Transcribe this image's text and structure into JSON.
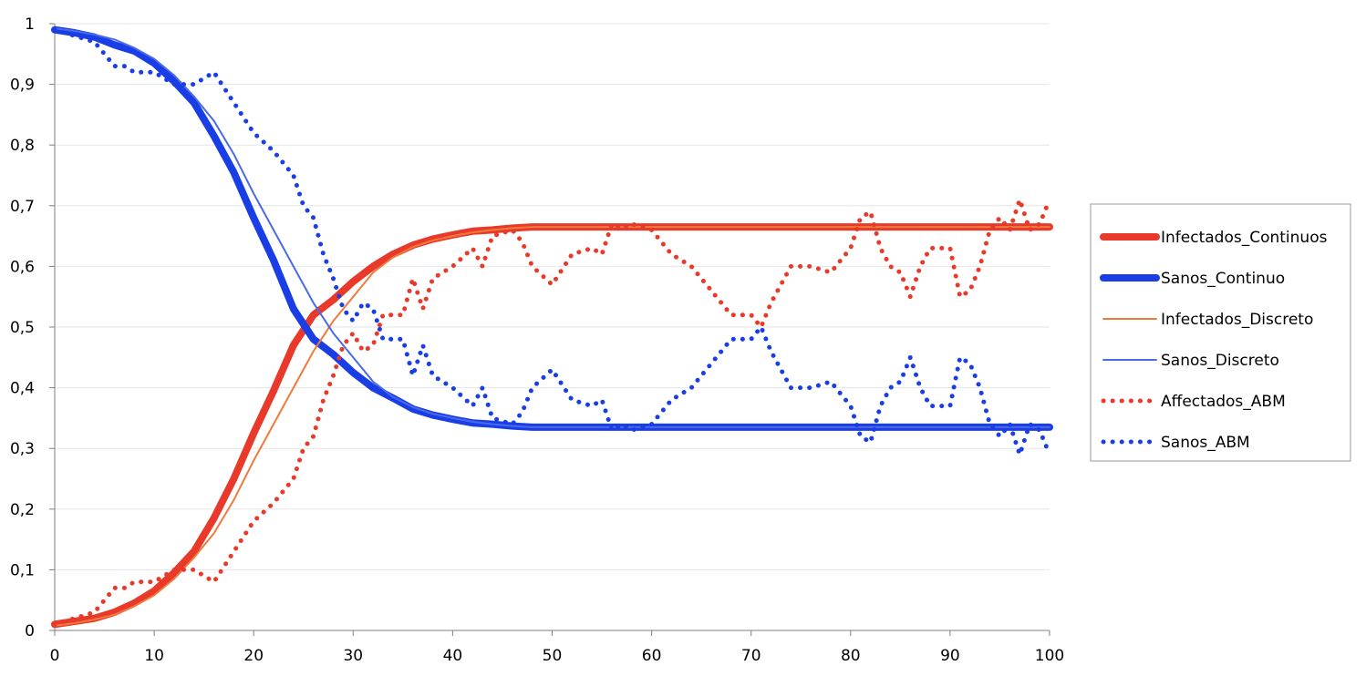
{
  "chart_data": {
    "type": "line",
    "title": "",
    "xlabel": "",
    "ylabel": "",
    "xlim": [
      0,
      100
    ],
    "ylim": [
      0,
      1
    ],
    "x_ticks": [
      "0",
      "10",
      "20",
      "30",
      "40",
      "50",
      "60",
      "70",
      "80",
      "90",
      "100"
    ],
    "y_ticks": [
      "0",
      "0,1",
      "0,2",
      "0,3",
      "0,4",
      "0,5",
      "0,6",
      "0,7",
      "0,8",
      "0,9",
      "1"
    ],
    "grid": "horizontal",
    "legend_position": "right",
    "series": [
      {
        "name": "Infectados_Continuos",
        "color": "#e8392a",
        "style": "thick",
        "points": [
          [
            0,
            0.01
          ],
          [
            2,
            0.015
          ],
          [
            4,
            0.02
          ],
          [
            6,
            0.03
          ],
          [
            8,
            0.045
          ],
          [
            10,
            0.065
          ],
          [
            12,
            0.095
          ],
          [
            14,
            0.13
          ],
          [
            16,
            0.185
          ],
          [
            18,
            0.25
          ],
          [
            20,
            0.325
          ],
          [
            22,
            0.395
          ],
          [
            24,
            0.47
          ],
          [
            26,
            0.52
          ],
          [
            28,
            0.545
          ],
          [
            30,
            0.575
          ],
          [
            32,
            0.6
          ],
          [
            34,
            0.62
          ],
          [
            36,
            0.635
          ],
          [
            38,
            0.645
          ],
          [
            40,
            0.652
          ],
          [
            42,
            0.658
          ],
          [
            44,
            0.66
          ],
          [
            46,
            0.663
          ],
          [
            48,
            0.665
          ],
          [
            100,
            0.665
          ]
        ]
      },
      {
        "name": "Sanos_Continuo",
        "color": "#1a3ee6",
        "style": "thick",
        "points": [
          [
            0,
            0.99
          ],
          [
            2,
            0.985
          ],
          [
            4,
            0.978
          ],
          [
            6,
            0.965
          ],
          [
            8,
            0.955
          ],
          [
            10,
            0.935
          ],
          [
            12,
            0.905
          ],
          [
            14,
            0.87
          ],
          [
            16,
            0.815
          ],
          [
            18,
            0.755
          ],
          [
            20,
            0.68
          ],
          [
            22,
            0.61
          ],
          [
            24,
            0.53
          ],
          [
            26,
            0.48
          ],
          [
            28,
            0.455
          ],
          [
            30,
            0.425
          ],
          [
            32,
            0.4
          ],
          [
            34,
            0.383
          ],
          [
            36,
            0.365
          ],
          [
            38,
            0.355
          ],
          [
            40,
            0.348
          ],
          [
            42,
            0.342
          ],
          [
            44,
            0.34
          ],
          [
            46,
            0.337
          ],
          [
            48,
            0.335
          ],
          [
            100,
            0.335
          ]
        ]
      },
      {
        "name": "Infectados_Discreto",
        "color": "#f07a3a",
        "style": "thin",
        "points": [
          [
            0,
            0.008
          ],
          [
            2,
            0.012
          ],
          [
            4,
            0.018
          ],
          [
            6,
            0.026
          ],
          [
            8,
            0.04
          ],
          [
            10,
            0.058
          ],
          [
            12,
            0.085
          ],
          [
            14,
            0.12
          ],
          [
            16,
            0.16
          ],
          [
            18,
            0.215
          ],
          [
            20,
            0.28
          ],
          [
            22,
            0.34
          ],
          [
            24,
            0.4
          ],
          [
            26,
            0.46
          ],
          [
            28,
            0.51
          ],
          [
            30,
            0.55
          ],
          [
            32,
            0.59
          ],
          [
            34,
            0.615
          ],
          [
            36,
            0.632
          ],
          [
            38,
            0.643
          ],
          [
            40,
            0.65
          ],
          [
            42,
            0.656
          ],
          [
            44,
            0.66
          ],
          [
            46,
            0.663
          ],
          [
            48,
            0.665
          ],
          [
            100,
            0.665
          ]
        ]
      },
      {
        "name": "Sanos_Discreto",
        "color": "#4a6ae8",
        "style": "thin",
        "points": [
          [
            0,
            0.992
          ],
          [
            2,
            0.988
          ],
          [
            4,
            0.982
          ],
          [
            6,
            0.974
          ],
          [
            8,
            0.96
          ],
          [
            10,
            0.942
          ],
          [
            12,
            0.915
          ],
          [
            14,
            0.88
          ],
          [
            16,
            0.84
          ],
          [
            18,
            0.785
          ],
          [
            20,
            0.72
          ],
          [
            22,
            0.66
          ],
          [
            24,
            0.6
          ],
          [
            26,
            0.54
          ],
          [
            28,
            0.49
          ],
          [
            30,
            0.45
          ],
          [
            32,
            0.41
          ],
          [
            34,
            0.385
          ],
          [
            36,
            0.368
          ],
          [
            38,
            0.357
          ],
          [
            40,
            0.35
          ],
          [
            42,
            0.344
          ],
          [
            44,
            0.34
          ],
          [
            46,
            0.337
          ],
          [
            48,
            0.335
          ],
          [
            100,
            0.335
          ]
        ]
      },
      {
        "name": "Affectados_ABM",
        "color": "#e8392a",
        "style": "dotted",
        "points": [
          [
            0,
            0.01
          ],
          [
            2,
            0.02
          ],
          [
            4,
            0.03
          ],
          [
            5,
            0.05
          ],
          [
            6,
            0.07
          ],
          [
            7,
            0.07
          ],
          [
            8,
            0.08
          ],
          [
            10,
            0.08
          ],
          [
            12,
            0.1
          ],
          [
            14,
            0.1
          ],
          [
            16,
            0.08
          ],
          [
            18,
            0.13
          ],
          [
            20,
            0.18
          ],
          [
            22,
            0.21
          ],
          [
            24,
            0.25
          ],
          [
            25,
            0.3
          ],
          [
            26,
            0.32
          ],
          [
            27,
            0.38
          ],
          [
            28,
            0.42
          ],
          [
            29,
            0.47
          ],
          [
            30,
            0.49
          ],
          [
            31,
            0.46
          ],
          [
            32,
            0.47
          ],
          [
            33,
            0.52
          ],
          [
            35,
            0.52
          ],
          [
            36,
            0.58
          ],
          [
            37,
            0.53
          ],
          [
            38,
            0.58
          ],
          [
            40,
            0.6
          ],
          [
            42,
            0.63
          ],
          [
            43,
            0.6
          ],
          [
            44,
            0.65
          ],
          [
            46,
            0.66
          ],
          [
            47,
            0.64
          ],
          [
            48,
            0.6
          ],
          [
            50,
            0.57
          ],
          [
            52,
            0.62
          ],
          [
            54,
            0.63
          ],
          [
            55,
            0.62
          ],
          [
            56,
            0.67
          ],
          [
            57,
            0.66
          ],
          [
            58,
            0.67
          ],
          [
            60,
            0.66
          ],
          [
            62,
            0.62
          ],
          [
            64,
            0.6
          ],
          [
            66,
            0.56
          ],
          [
            68,
            0.52
          ],
          [
            70,
            0.52
          ],
          [
            71,
            0.5
          ],
          [
            72,
            0.54
          ],
          [
            74,
            0.6
          ],
          [
            76,
            0.6
          ],
          [
            78,
            0.59
          ],
          [
            80,
            0.63
          ],
          [
            81,
            0.68
          ],
          [
            82,
            0.69
          ],
          [
            83,
            0.63
          ],
          [
            84,
            0.6
          ],
          [
            85,
            0.59
          ],
          [
            86,
            0.55
          ],
          [
            87,
            0.6
          ],
          [
            88,
            0.63
          ],
          [
            90,
            0.63
          ],
          [
            91,
            0.55
          ],
          [
            92,
            0.56
          ],
          [
            93,
            0.6
          ],
          [
            94,
            0.66
          ],
          [
            95,
            0.68
          ],
          [
            96,
            0.66
          ],
          [
            97,
            0.71
          ],
          [
            98,
            0.66
          ],
          [
            99,
            0.67
          ],
          [
            100,
            0.71
          ]
        ]
      },
      {
        "name": "Sanos_ABM",
        "color": "#1a3ee6",
        "style": "dotted",
        "points": [
          [
            0,
            0.99
          ],
          [
            2,
            0.98
          ],
          [
            4,
            0.97
          ],
          [
            5,
            0.95
          ],
          [
            6,
            0.93
          ],
          [
            7,
            0.93
          ],
          [
            8,
            0.92
          ],
          [
            10,
            0.92
          ],
          [
            12,
            0.9
          ],
          [
            14,
            0.9
          ],
          [
            16,
            0.92
          ],
          [
            18,
            0.87
          ],
          [
            20,
            0.82
          ],
          [
            22,
            0.79
          ],
          [
            24,
            0.75
          ],
          [
            25,
            0.7
          ],
          [
            26,
            0.68
          ],
          [
            27,
            0.62
          ],
          [
            28,
            0.58
          ],
          [
            29,
            0.53
          ],
          [
            30,
            0.51
          ],
          [
            31,
            0.54
          ],
          [
            32,
            0.53
          ],
          [
            33,
            0.48
          ],
          [
            35,
            0.48
          ],
          [
            36,
            0.42
          ],
          [
            37,
            0.47
          ],
          [
            38,
            0.42
          ],
          [
            40,
            0.4
          ],
          [
            42,
            0.37
          ],
          [
            43,
            0.4
          ],
          [
            44,
            0.35
          ],
          [
            46,
            0.34
          ],
          [
            47,
            0.36
          ],
          [
            48,
            0.4
          ],
          [
            50,
            0.43
          ],
          [
            52,
            0.38
          ],
          [
            54,
            0.37
          ],
          [
            55,
            0.38
          ],
          [
            56,
            0.33
          ],
          [
            57,
            0.34
          ],
          [
            58,
            0.33
          ],
          [
            60,
            0.34
          ],
          [
            62,
            0.38
          ],
          [
            64,
            0.4
          ],
          [
            66,
            0.44
          ],
          [
            68,
            0.48
          ],
          [
            70,
            0.48
          ],
          [
            71,
            0.5
          ],
          [
            72,
            0.46
          ],
          [
            74,
            0.4
          ],
          [
            76,
            0.4
          ],
          [
            78,
            0.41
          ],
          [
            80,
            0.37
          ],
          [
            81,
            0.32
          ],
          [
            82,
            0.31
          ],
          [
            83,
            0.37
          ],
          [
            84,
            0.4
          ],
          [
            85,
            0.41
          ],
          [
            86,
            0.45
          ],
          [
            87,
            0.4
          ],
          [
            88,
            0.37
          ],
          [
            90,
            0.37
          ],
          [
            91,
            0.45
          ],
          [
            92,
            0.44
          ],
          [
            93,
            0.4
          ],
          [
            94,
            0.34
          ],
          [
            95,
            0.32
          ],
          [
            96,
            0.34
          ],
          [
            97,
            0.29
          ],
          [
            98,
            0.34
          ],
          [
            99,
            0.33
          ],
          [
            100,
            0.29
          ]
        ]
      }
    ]
  }
}
